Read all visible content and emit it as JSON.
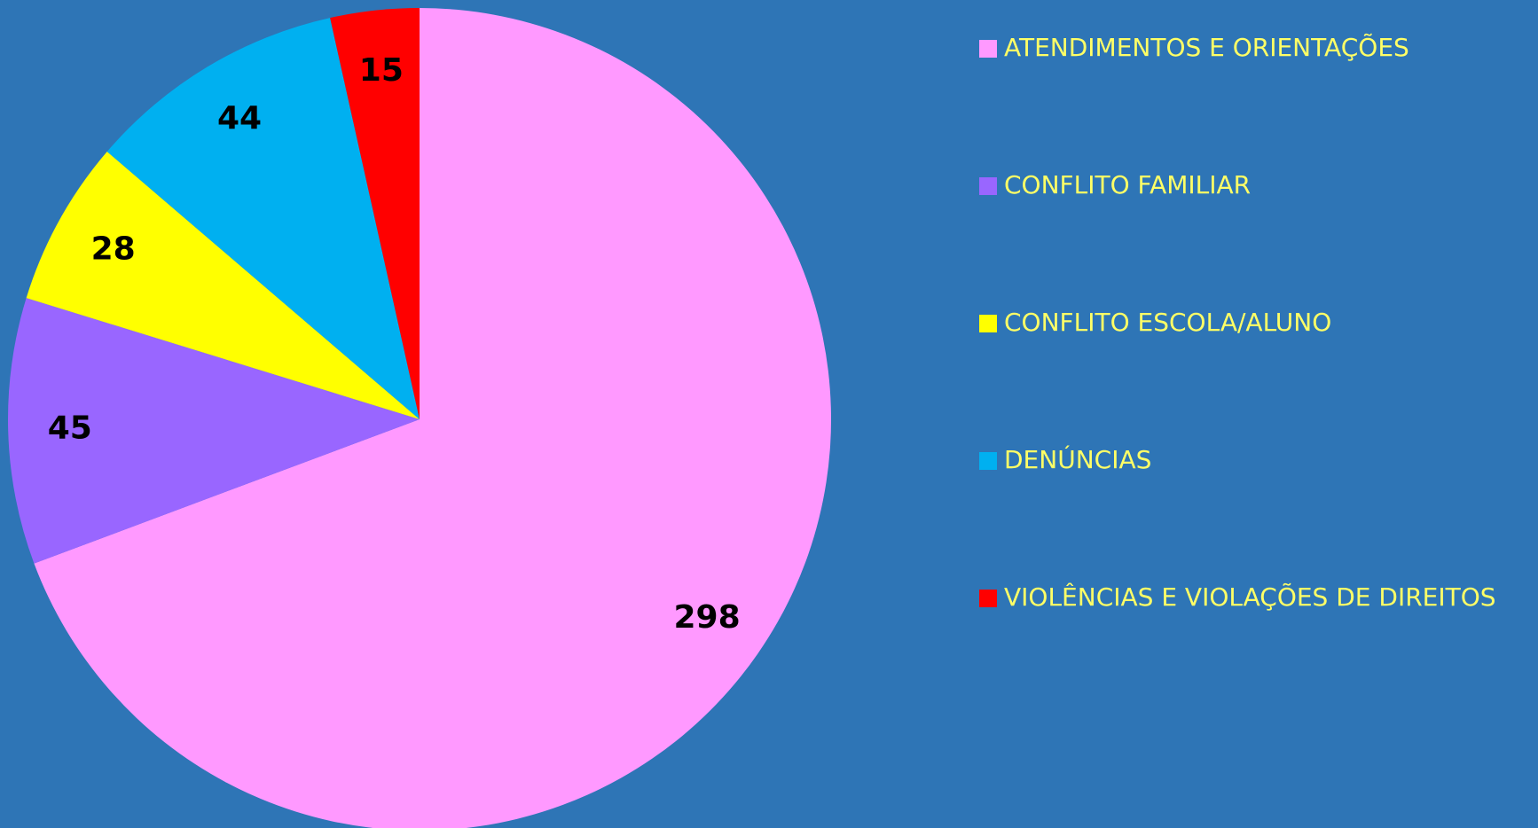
{
  "chart_data": {
    "type": "pie",
    "categories": [
      "ATENDIMENTOS E ORIENTAÇÕES",
      "CONFLITO FAMILIAR",
      "CONFLITO ESCOLA/ALUNO",
      "DENÚNCIAS",
      "VIOLÊNCIAS E VIOLAÇÕES DE DIREITOS"
    ],
    "values": [
      298,
      45,
      28,
      44,
      15
    ],
    "colors": [
      "#ff99ff",
      "#9966ff",
      "#ffff00",
      "#00b0f0",
      "#ff0000"
    ],
    "legend": "right"
  }
}
